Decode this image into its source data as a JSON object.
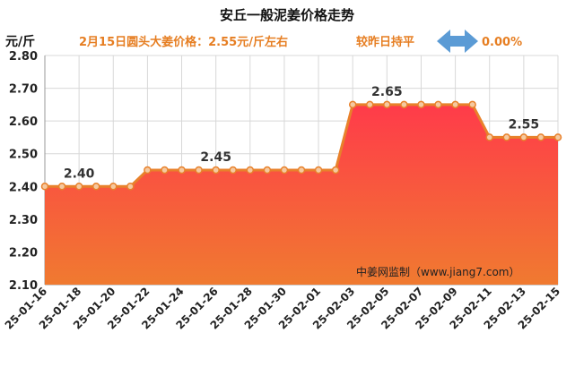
{
  "header": {
    "title": "安丘一般泥姜价格走势",
    "unit": "元/斤",
    "subtitle": "2月15日圆头大姜价格：2.55元/斤左右",
    "compare_label": "较昨日持平",
    "change_value": "0.00%"
  },
  "watermark": "中姜网监制（www.jiang7.com）",
  "colors": {
    "line": "#e8812b",
    "fill_top": "#ff3b4a",
    "fill_bottom": "#f07a30",
    "accent_text": "#e67e22",
    "arrow": "#5b9bd5",
    "grid": "#d8d8d8"
  },
  "chart_data": {
    "type": "area",
    "title": "安丘一般泥姜价格走势",
    "ylabel": "元/斤",
    "ylim": [
      2.1,
      2.8
    ],
    "yticks": [
      "2.10",
      "2.20",
      "2.30",
      "2.40",
      "2.50",
      "2.60",
      "2.70",
      "2.80"
    ],
    "grid": true,
    "x": [
      "25-01-16",
      "25-01-17",
      "25-01-18",
      "25-01-19",
      "25-01-20",
      "25-01-21",
      "25-01-22",
      "25-01-23",
      "25-01-24",
      "25-01-25",
      "25-01-26",
      "25-01-27",
      "25-01-28",
      "25-01-29",
      "25-01-30",
      "25-01-31",
      "25-02-01",
      "25-02-02",
      "25-02-03",
      "25-02-04",
      "25-02-05",
      "25-02-06",
      "25-02-07",
      "25-02-08",
      "25-02-09",
      "25-02-10",
      "25-02-11",
      "25-02-12",
      "25-02-13",
      "25-02-14",
      "25-02-15"
    ],
    "xtick_labels": [
      "25-01-16",
      "25-01-18",
      "25-01-20",
      "25-01-22",
      "25-01-24",
      "25-01-26",
      "25-01-28",
      "25-01-30",
      "25-02-01",
      "25-02-03",
      "25-02-05",
      "25-02-07",
      "25-02-09",
      "25-02-11",
      "25-02-13",
      "25-02-15"
    ],
    "values": [
      2.4,
      2.4,
      2.4,
      2.4,
      2.4,
      2.4,
      2.45,
      2.45,
      2.45,
      2.45,
      2.45,
      2.45,
      2.45,
      2.45,
      2.45,
      2.45,
      2.45,
      2.45,
      2.65,
      2.65,
      2.65,
      2.65,
      2.65,
      2.65,
      2.65,
      2.65,
      2.55,
      2.55,
      2.55,
      2.55,
      2.55
    ],
    "data_labels": [
      {
        "x": "25-01-18",
        "text": "2.40"
      },
      {
        "x": "25-01-26",
        "text": "2.45"
      },
      {
        "x": "25-02-05",
        "text": "2.65"
      },
      {
        "x": "25-02-13",
        "text": "2.55"
      }
    ]
  }
}
